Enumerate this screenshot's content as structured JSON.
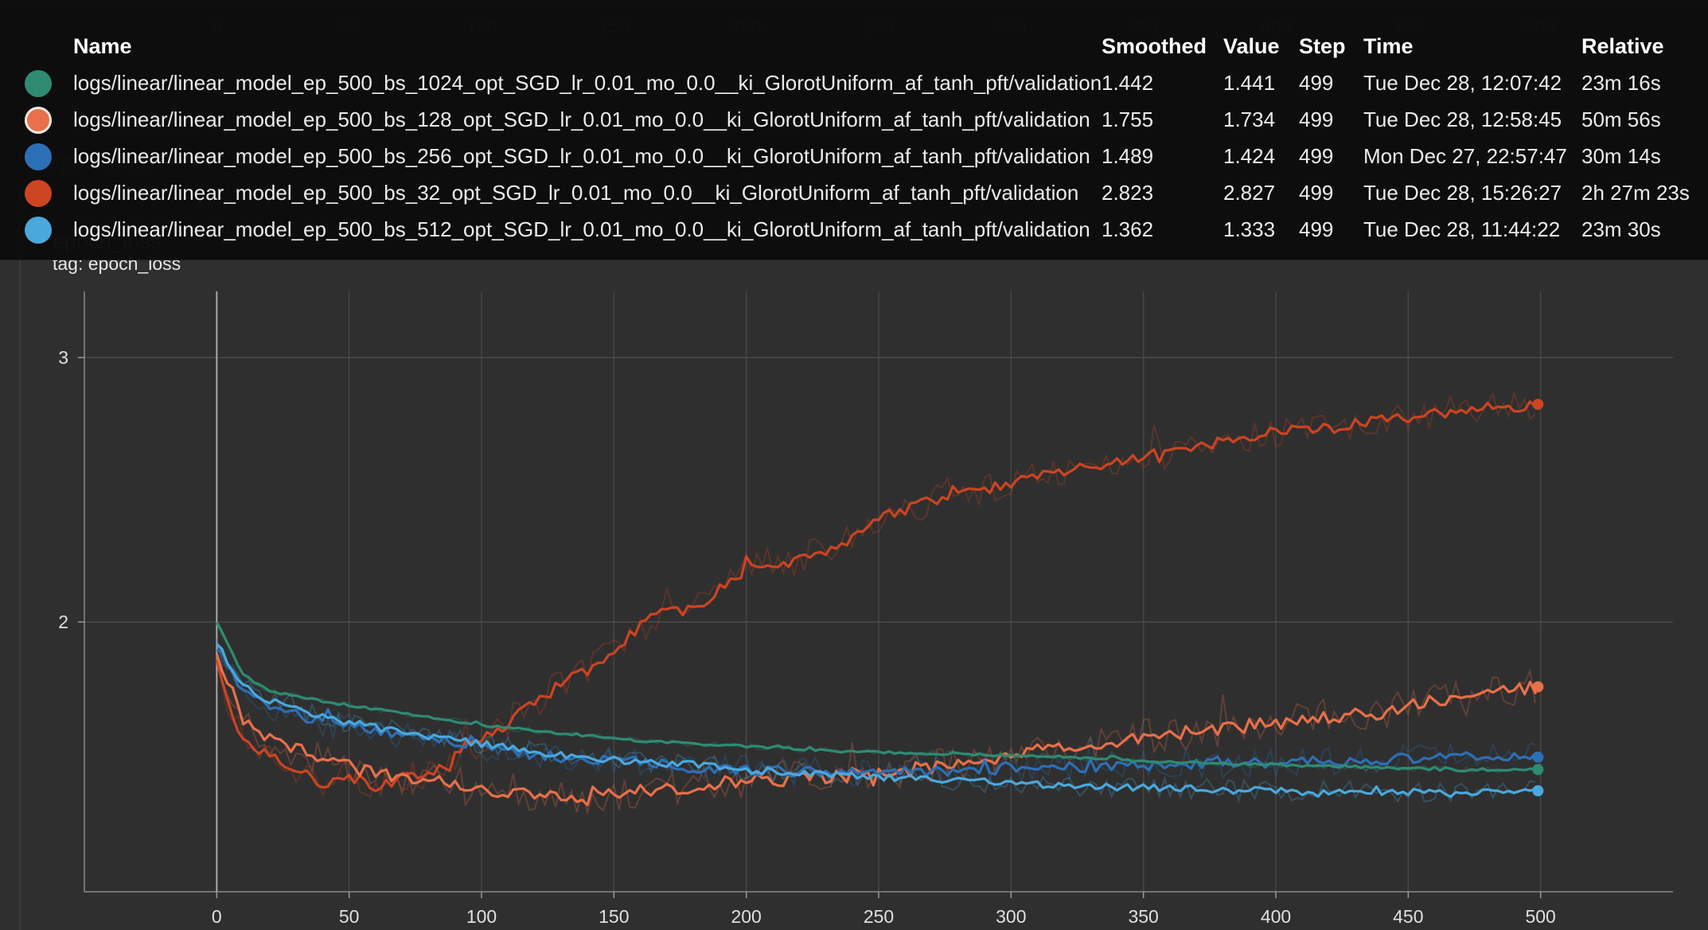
{
  "colors": {
    "background": "#2f2f2f",
    "tooltip_bg": "#0c0c0c",
    "grid": "#4a4a4a"
  },
  "chart": {
    "ghost_title": "epoch_loss",
    "title": "epoch_loss",
    "tag": "tag: epoch_loss"
  },
  "tooltip": {
    "headers": {
      "name": "Name",
      "smoothed": "Smoothed",
      "value": "Value",
      "step": "Step",
      "time": "Time",
      "relative": "Relative"
    },
    "rows": [
      {
        "name": "logs/linear/linear_model_ep_500_bs_1024_opt_SGD_lr_0.01_mo_0.0__ki_GlorotUniform_af_tanh_pft/validation",
        "smoothed": "1.442",
        "value": "1.441",
        "step": "499",
        "time": "Tue Dec 28, 12:07:42",
        "relative": "23m 16s",
        "color": "#2e8b72",
        "selected": false
      },
      {
        "name": "logs/linear/linear_model_ep_500_bs_128_opt_SGD_lr_0.01_mo_0.0__ki_GlorotUniform_af_tanh_pft/validation",
        "smoothed": "1.755",
        "value": "1.734",
        "step": "499",
        "time": "Tue Dec 28, 12:58:45",
        "relative": "50m 56s",
        "color": "#e8704a",
        "selected": true
      },
      {
        "name": "logs/linear/linear_model_ep_500_bs_256_opt_SGD_lr_0.01_mo_0.0__ki_GlorotUniform_af_tanh_pft/validation",
        "smoothed": "1.489",
        "value": "1.424",
        "step": "499",
        "time": "Mon Dec 27, 22:57:47",
        "relative": "30m 14s",
        "color": "#2d6fb5",
        "selected": false
      },
      {
        "name": "logs/linear/linear_model_ep_500_bs_32_opt_SGD_lr_0.01_mo_0.0__ki_GlorotUniform_af_tanh_pft/validation",
        "smoothed": "2.823",
        "value": "2.827",
        "step": "499",
        "time": "Tue Dec 28, 15:26:27",
        "relative": "2h 27m 23s",
        "color": "#cc4422",
        "selected": false
      },
      {
        "name": "logs/linear/linear_model_ep_500_bs_512_opt_SGD_lr_0.01_mo_0.0__ki_GlorotUniform_af_tanh_pft/validation",
        "smoothed": "1.362",
        "value": "1.333",
        "step": "499",
        "time": "Tue Dec 28, 11:44:22",
        "relative": "23m 30s",
        "color": "#4aa8dc",
        "selected": false
      }
    ]
  },
  "chart_data": {
    "type": "line",
    "xlim": [
      -50,
      550
    ],
    "ylim": [
      0.98,
      3.25
    ],
    "xticks": [
      0,
      50,
      100,
      150,
      200,
      250,
      300,
      350,
      400,
      450,
      500
    ],
    "yticks": [
      2,
      3
    ],
    "grid": true,
    "series": [
      {
        "key": "bs32",
        "color": "#cc4422",
        "anchors": [
          [
            0,
            1.87
          ],
          [
            5,
            1.66
          ],
          [
            10,
            1.56
          ],
          [
            20,
            1.5
          ],
          [
            30,
            1.45
          ],
          [
            40,
            1.39
          ],
          [
            50,
            1.42
          ],
          [
            60,
            1.38
          ],
          [
            70,
            1.41
          ],
          [
            80,
            1.42
          ],
          [
            90,
            1.49
          ],
          [
            100,
            1.55
          ],
          [
            110,
            1.62
          ],
          [
            120,
            1.7
          ],
          [
            130,
            1.76
          ],
          [
            140,
            1.82
          ],
          [
            150,
            1.89
          ],
          [
            160,
            1.98
          ],
          [
            170,
            2.05
          ],
          [
            180,
            2.04
          ],
          [
            190,
            2.12
          ],
          [
            200,
            2.2
          ],
          [
            210,
            2.21
          ],
          [
            220,
            2.24
          ],
          [
            230,
            2.27
          ],
          [
            240,
            2.31
          ],
          [
            250,
            2.4
          ],
          [
            260,
            2.42
          ],
          [
            270,
            2.46
          ],
          [
            280,
            2.5
          ],
          [
            290,
            2.5
          ],
          [
            300,
            2.53
          ],
          [
            320,
            2.57
          ],
          [
            340,
            2.61
          ],
          [
            360,
            2.63
          ],
          [
            380,
            2.68
          ],
          [
            400,
            2.72
          ],
          [
            420,
            2.74
          ],
          [
            440,
            2.76
          ],
          [
            460,
            2.79
          ],
          [
            480,
            2.81
          ],
          [
            499,
            2.823
          ]
        ],
        "noise": 0.025,
        "raw_noise": 0.06
      },
      {
        "key": "bs128",
        "color": "#e8704a",
        "anchors": [
          [
            0,
            1.89
          ],
          [
            10,
            1.62
          ],
          [
            20,
            1.55
          ],
          [
            30,
            1.52
          ],
          [
            40,
            1.48
          ],
          [
            50,
            1.46
          ],
          [
            60,
            1.42
          ],
          [
            80,
            1.4
          ],
          [
            100,
            1.37
          ],
          [
            120,
            1.35
          ],
          [
            140,
            1.33
          ],
          [
            160,
            1.36
          ],
          [
            180,
            1.38
          ],
          [
            200,
            1.4
          ],
          [
            220,
            1.41
          ],
          [
            240,
            1.42
          ],
          [
            260,
            1.44
          ],
          [
            280,
            1.46
          ],
          [
            300,
            1.5
          ],
          [
            320,
            1.52
          ],
          [
            340,
            1.55
          ],
          [
            360,
            1.58
          ],
          [
            380,
            1.6
          ],
          [
            400,
            1.62
          ],
          [
            420,
            1.64
          ],
          [
            440,
            1.66
          ],
          [
            460,
            1.7
          ],
          [
            480,
            1.72
          ],
          [
            499,
            1.755
          ]
        ],
        "noise": 0.03,
        "raw_noise": 0.07
      },
      {
        "key": "bs256",
        "color": "#2d6fb5",
        "anchors": [
          [
            0,
            1.9
          ],
          [
            10,
            1.74
          ],
          [
            20,
            1.68
          ],
          [
            40,
            1.62
          ],
          [
            60,
            1.59
          ],
          [
            80,
            1.56
          ],
          [
            100,
            1.53
          ],
          [
            120,
            1.5
          ],
          [
            140,
            1.48
          ],
          [
            160,
            1.47
          ],
          [
            180,
            1.45
          ],
          [
            200,
            1.44
          ],
          [
            240,
            1.43
          ],
          [
            280,
            1.44
          ],
          [
            320,
            1.45
          ],
          [
            360,
            1.46
          ],
          [
            400,
            1.47
          ],
          [
            440,
            1.48
          ],
          [
            470,
            1.49
          ],
          [
            499,
            1.489
          ]
        ],
        "noise": 0.022,
        "raw_noise": 0.055
      },
      {
        "key": "bs512",
        "color": "#4aa8dc",
        "anchors": [
          [
            0,
            1.92
          ],
          [
            10,
            1.76
          ],
          [
            20,
            1.7
          ],
          [
            40,
            1.64
          ],
          [
            60,
            1.6
          ],
          [
            80,
            1.57
          ],
          [
            100,
            1.54
          ],
          [
            120,
            1.51
          ],
          [
            140,
            1.49
          ],
          [
            160,
            1.47
          ],
          [
            180,
            1.46
          ],
          [
            200,
            1.44
          ],
          [
            240,
            1.42
          ],
          [
            280,
            1.4
          ],
          [
            320,
            1.38
          ],
          [
            360,
            1.37
          ],
          [
            400,
            1.36
          ],
          [
            440,
            1.36
          ],
          [
            470,
            1.35
          ],
          [
            499,
            1.362
          ]
        ],
        "noise": 0.015,
        "raw_noise": 0.04
      },
      {
        "key": "bs1024",
        "color": "#2e8b72",
        "anchors": [
          [
            0,
            2.0
          ],
          [
            10,
            1.8
          ],
          [
            20,
            1.74
          ],
          [
            40,
            1.7
          ],
          [
            60,
            1.67
          ],
          [
            80,
            1.64
          ],
          [
            100,
            1.61
          ],
          [
            120,
            1.59
          ],
          [
            140,
            1.57
          ],
          [
            160,
            1.55
          ],
          [
            180,
            1.54
          ],
          [
            200,
            1.53
          ],
          [
            240,
            1.51
          ],
          [
            280,
            1.5
          ],
          [
            320,
            1.49
          ],
          [
            360,
            1.47
          ],
          [
            400,
            1.46
          ],
          [
            440,
            1.45
          ],
          [
            470,
            1.44
          ],
          [
            499,
            1.442
          ]
        ],
        "noise": 0.005,
        "raw_noise": 0.012
      }
    ]
  }
}
